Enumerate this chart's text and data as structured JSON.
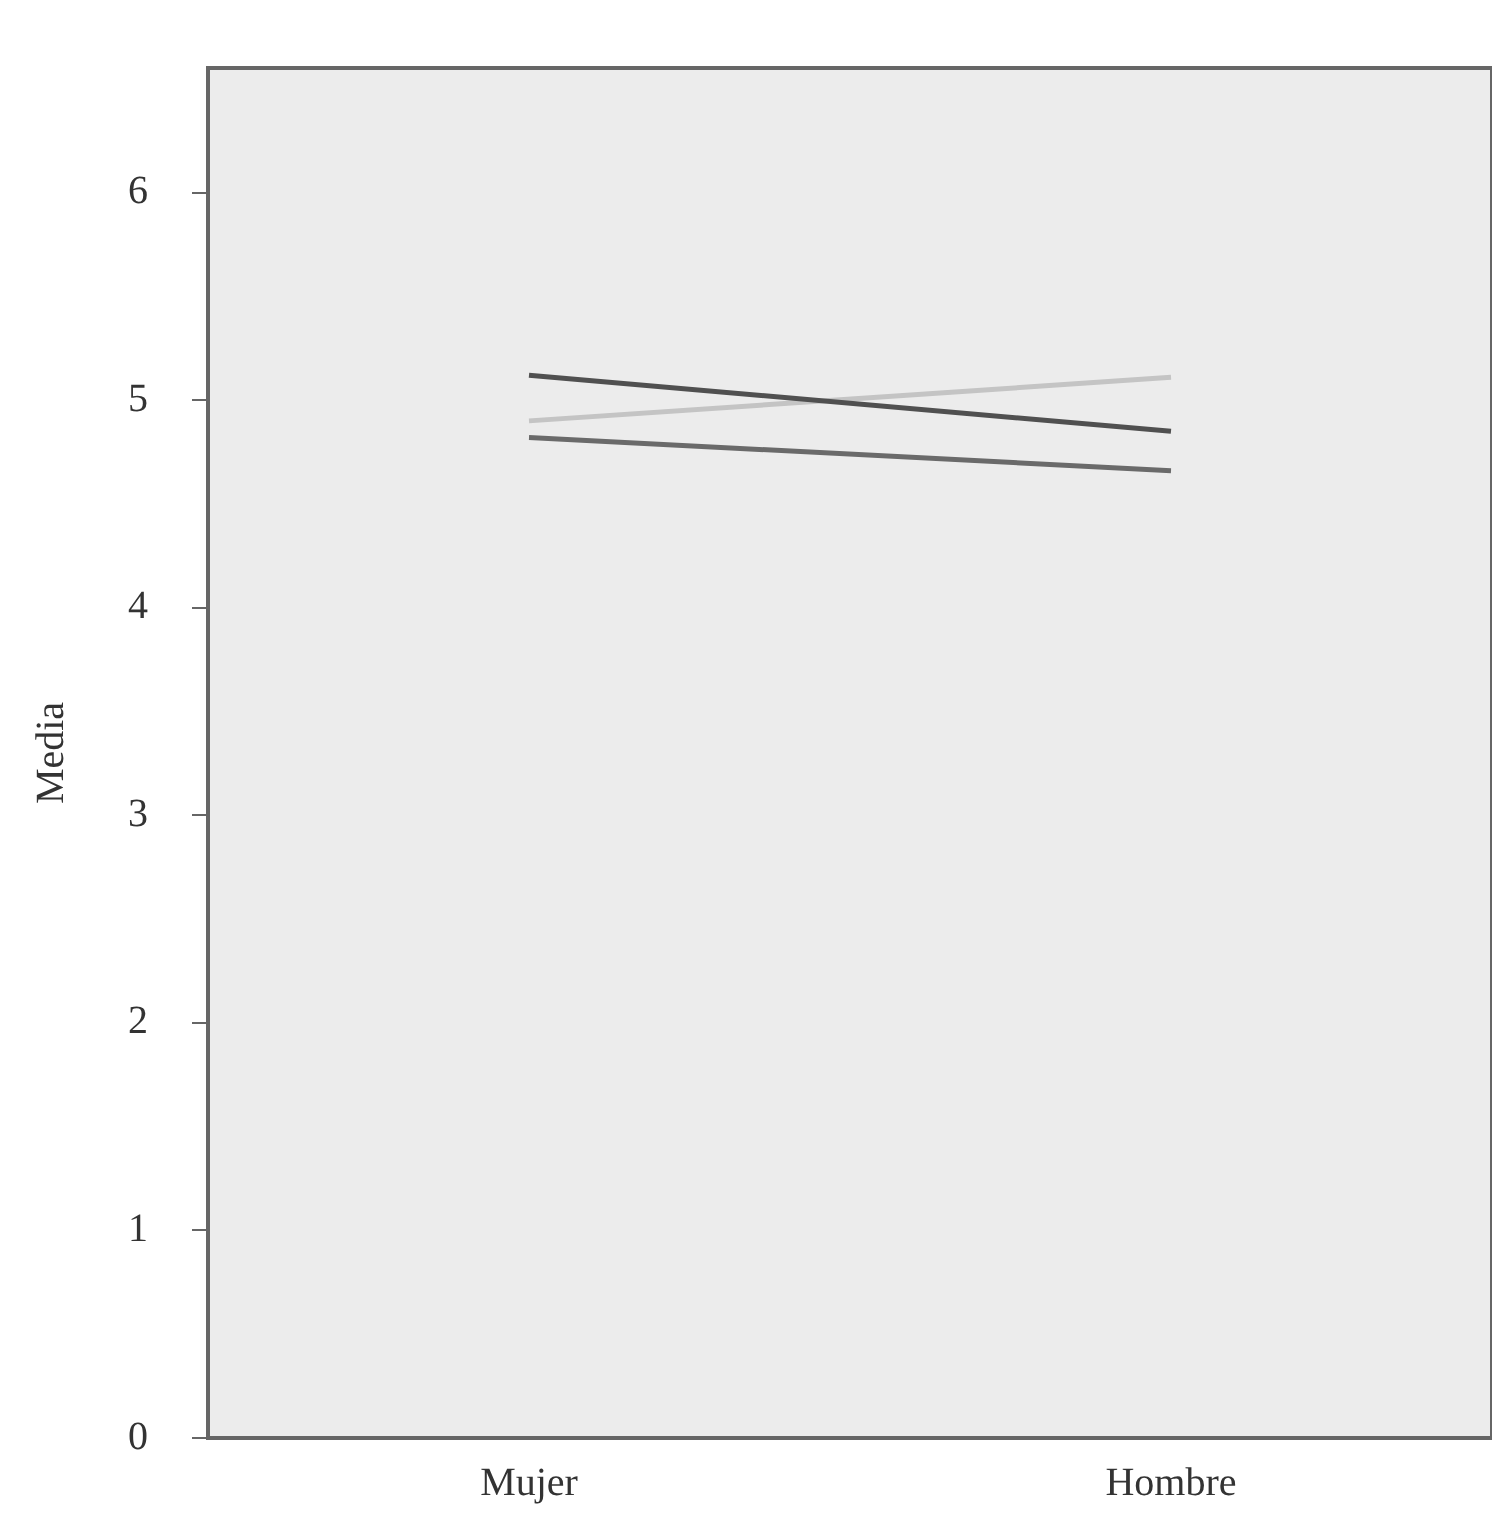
{
  "chart_data": {
    "type": "line",
    "ylabel": "Media",
    "categories": [
      "Mujer",
      "Hombre"
    ],
    "series": [
      {
        "color": "#505050",
        "values": [
          5.12,
          4.85
        ]
      },
      {
        "color": "#6a6a6a",
        "values": [
          4.82,
          4.66
        ]
      },
      {
        "color": "#c4c4c4",
        "values": [
          4.9,
          5.11
        ]
      }
    ],
    "ylim": [
      0,
      6.6
    ],
    "yticks": [
      0,
      1,
      2,
      3,
      4,
      5,
      6
    ],
    "grid": false,
    "legend": false,
    "marker": "none",
    "line_style": "solid"
  }
}
